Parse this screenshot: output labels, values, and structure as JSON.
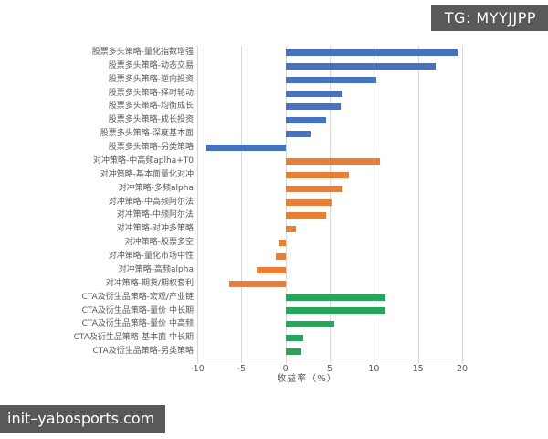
{
  "overlays": {
    "tg_badge": "TG: MYYJJPP",
    "watermark": "init–yabosports.com"
  },
  "chart_data": {
    "type": "bar",
    "orientation": "horizontal",
    "title": "",
    "xlabel": "收益率（%）",
    "xlim": [
      -10,
      20
    ],
    "xticks": [
      -10,
      -5,
      0,
      5,
      10,
      15,
      20
    ],
    "grid": true,
    "groups": [
      {
        "name": "股票多头策略",
        "color": "#4472c4"
      },
      {
        "name": "对冲策略",
        "color": "#ed7d31"
      },
      {
        "name": "CTA及衍生品策略",
        "color": "#23a858"
      }
    ],
    "bars": [
      {
        "label": "股票多头策略-量化指数增强",
        "value": 19.5,
        "group": 0
      },
      {
        "label": "股票多头策略-动态交易",
        "value": 17.0,
        "group": 0
      },
      {
        "label": "股票多头策略-逆向投资",
        "value": 10.3,
        "group": 0
      },
      {
        "label": "股票多头策略-择时轮动",
        "value": 6.5,
        "group": 0
      },
      {
        "label": "股票多头策略-均衡成长",
        "value": 6.2,
        "group": 0
      },
      {
        "label": "股票多头策略-成长投资",
        "value": 4.6,
        "group": 0
      },
      {
        "label": "股票多头策略-深度基本面",
        "value": 2.8,
        "group": 0
      },
      {
        "label": "股票多头策略-另类策略",
        "value": -9.0,
        "group": 0
      },
      {
        "label": "对冲策略-中高频aplha+T0",
        "value": 10.7,
        "group": 1
      },
      {
        "label": "对冲策略-基本面量化对冲",
        "value": 7.2,
        "group": 1
      },
      {
        "label": "对冲策略-多频alpha",
        "value": 6.4,
        "group": 1
      },
      {
        "label": "对冲策略-中高频阿尔法",
        "value": 5.2,
        "group": 1
      },
      {
        "label": "对冲策略-中频阿尔法",
        "value": 4.6,
        "group": 1
      },
      {
        "label": "对冲策略-对冲多策略",
        "value": 1.2,
        "group": 1
      },
      {
        "label": "对冲策略-股票多空",
        "value": -0.8,
        "group": 1
      },
      {
        "label": "对冲策略-量化市场中性",
        "value": -1.1,
        "group": 1
      },
      {
        "label": "对冲策略-高频alpha",
        "value": -3.3,
        "group": 1
      },
      {
        "label": "对冲策略-期货/期权套利",
        "value": -6.4,
        "group": 1
      },
      {
        "label": "CTA及衍生品策略-宏观/产业链",
        "value": 11.3,
        "group": 2
      },
      {
        "label": "CTA及衍生品策略-量价 中长期",
        "value": 11.3,
        "group": 2
      },
      {
        "label": "CTA及衍生品策略-量价 中高频",
        "value": 5.5,
        "group": 2
      },
      {
        "label": "CTA及衍生品策略-基本面 中长期",
        "value": 2.0,
        "group": 2
      },
      {
        "label": "CTA及衍生品策略-另类策略",
        "value": 1.8,
        "group": 2
      }
    ]
  }
}
